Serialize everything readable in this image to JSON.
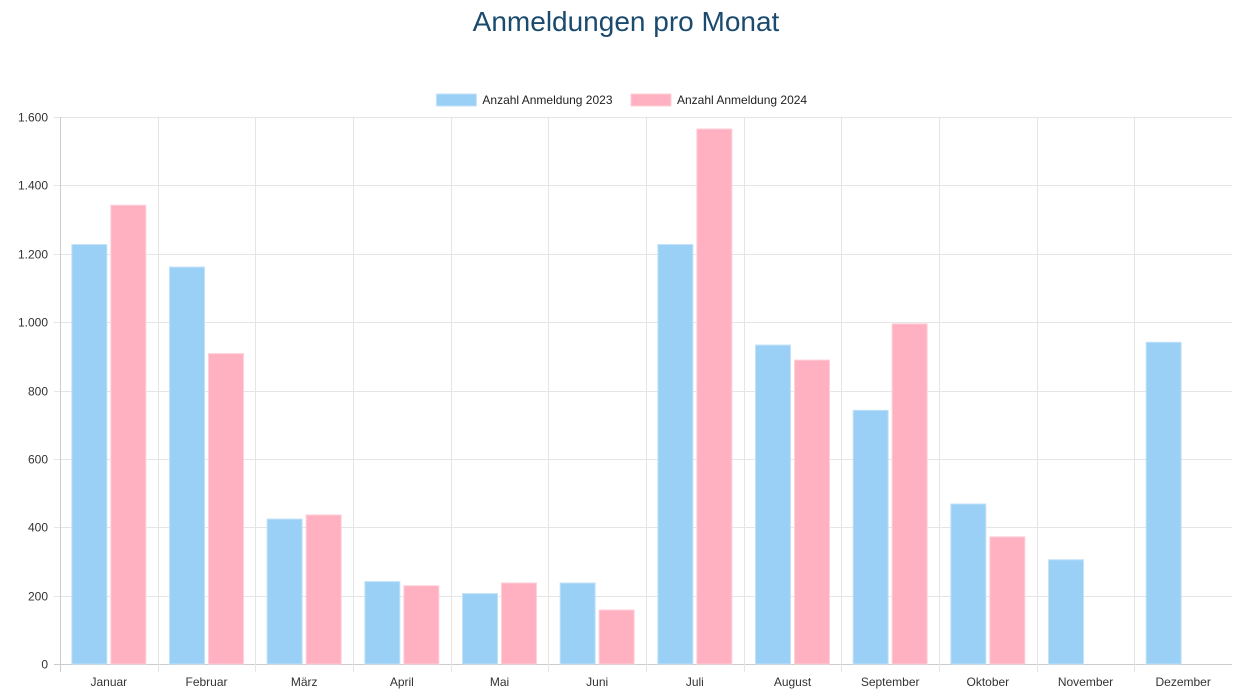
{
  "chart_data": {
    "type": "bar",
    "title": "Anmeldungen pro Monat",
    "xlabel": "",
    "ylabel": "",
    "ylim": [
      0,
      1600
    ],
    "yticks": [
      0,
      200,
      400,
      600,
      800,
      1000,
      1200,
      1400,
      1600
    ],
    "ytick_labels": [
      "0",
      "200",
      "400",
      "600",
      "800",
      "1.000",
      "1.200",
      "1.400",
      "1.600"
    ],
    "grid": true,
    "legend_position": "top-center",
    "categories": [
      "Januar",
      "Februar",
      "März",
      "April",
      "Mai",
      "Juni",
      "Juli",
      "August",
      "September",
      "Oktober",
      "November",
      "Dezember"
    ],
    "series": [
      {
        "name": "Anzahl Anmeldung 2023",
        "color": "#9ad0f5",
        "values": [
          1227,
          1161,
          424,
          241,
          206,
          237,
          1227,
          933,
          742,
          468,
          305,
          941
        ]
      },
      {
        "name": "Anzahl Anmeldung 2024",
        "color": "#ffb1c1",
        "values": [
          1342,
          908,
          436,
          229,
          237,
          158,
          1565,
          889,
          995,
          372,
          null,
          null
        ]
      }
    ]
  }
}
